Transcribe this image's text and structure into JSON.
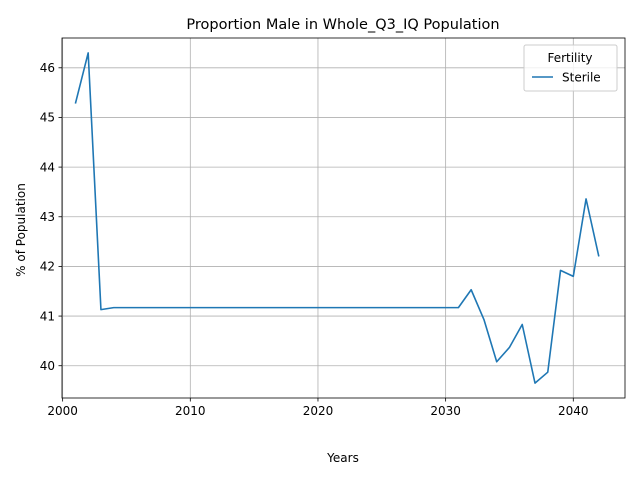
{
  "chart_data": {
    "type": "line",
    "title": "Proportion Male in Whole_Q3_IQ Population",
    "xlabel": "Years",
    "ylabel": "% of Population",
    "xlim": [
      1999.95,
      2044.05
    ],
    "ylim": [
      39.35,
      46.6
    ],
    "xticks": [
      2000,
      2010,
      2020,
      2030,
      2040
    ],
    "yticks": [
      40,
      41,
      42,
      43,
      44,
      45,
      46
    ],
    "grid": true,
    "legend": {
      "title": "Fertility",
      "placement": "top-right"
    },
    "series": [
      {
        "name": "Sterile",
        "color": "#1f77b4",
        "x": [
          2001,
          2002,
          2003,
          2004,
          2005,
          2006,
          2007,
          2008,
          2009,
          2010,
          2011,
          2012,
          2013,
          2014,
          2015,
          2016,
          2017,
          2018,
          2019,
          2020,
          2021,
          2022,
          2023,
          2024,
          2025,
          2026,
          2027,
          2028,
          2029,
          2030,
          2031,
          2032,
          2033,
          2034,
          2035,
          2036,
          2037,
          2038,
          2039,
          2040,
          2041,
          2042
        ],
        "y": [
          45.28,
          46.3,
          41.13,
          41.17,
          41.17,
          41.17,
          41.17,
          41.17,
          41.17,
          41.17,
          41.17,
          41.17,
          41.17,
          41.17,
          41.17,
          41.17,
          41.17,
          41.17,
          41.17,
          41.17,
          41.17,
          41.17,
          41.17,
          41.17,
          41.17,
          41.17,
          41.17,
          41.17,
          41.17,
          41.17,
          41.17,
          41.53,
          40.93,
          40.08,
          40.37,
          40.83,
          39.65,
          39.87,
          41.92,
          41.8,
          43.36,
          42.2
        ]
      }
    ]
  }
}
